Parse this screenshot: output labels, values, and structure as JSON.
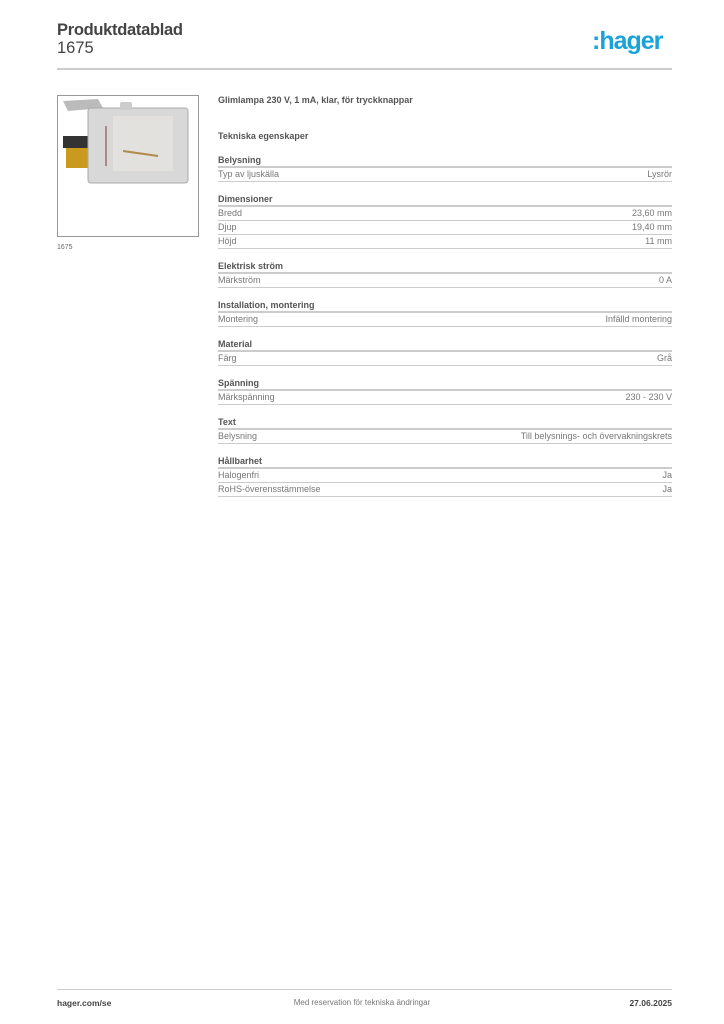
{
  "header": {
    "title": "Produktdatablad",
    "subtitle": "1675",
    "logo": ":hager",
    "logo_color": "#1aa3d9"
  },
  "image": {
    "caption": "1675"
  },
  "product": {
    "name": "Glimlampa 230 V, 1 mA, klar, för tryckknappar",
    "tech_heading": "Tekniska egenskaper"
  },
  "sections": [
    {
      "title": "Belysning",
      "rows": [
        {
          "label": "Typ av ljuskälla",
          "value": "Lysrör"
        }
      ]
    },
    {
      "title": "Dimensioner",
      "rows": [
        {
          "label": "Bredd",
          "value": "23,60 mm"
        },
        {
          "label": "Djup",
          "value": "19,40 mm"
        },
        {
          "label": "Höjd",
          "value": "11 mm"
        }
      ]
    },
    {
      "title": "Elektrisk ström",
      "rows": [
        {
          "label": "Märkström",
          "value": "0 A"
        }
      ]
    },
    {
      "title": "Installation, montering",
      "rows": [
        {
          "label": "Montering",
          "value": "Infälld montering"
        }
      ]
    },
    {
      "title": "Material",
      "rows": [
        {
          "label": "Färg",
          "value": "Grå"
        }
      ]
    },
    {
      "title": "Spänning",
      "rows": [
        {
          "label": "Märkspänning",
          "value": "230 - 230 V"
        }
      ]
    },
    {
      "title": "Text",
      "rows": [
        {
          "label": "Belysning",
          "value": "Till belysnings- och övervakningskrets"
        }
      ]
    },
    {
      "title": "Hållbarhet",
      "rows": [
        {
          "label": "Halogenfri",
          "value": "Ja"
        },
        {
          "label": "RoHS-överensstämmelse",
          "value": "Ja"
        }
      ]
    }
  ],
  "footer": {
    "website": "hager.com/se",
    "disclaimer": "Med reservation för tekniska ändringar",
    "date": "27.06.2025"
  }
}
